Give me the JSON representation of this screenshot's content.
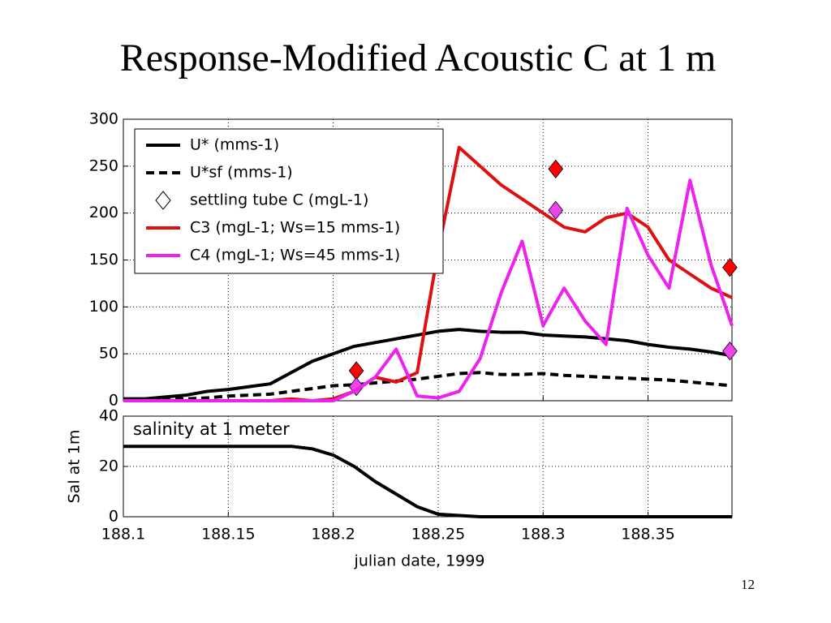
{
  "title": "Response-Modified Acoustic C at 1 m",
  "page_number": "12",
  "chart_data": [
    {
      "type": "line",
      "x": [
        188.1,
        188.11,
        188.12,
        188.13,
        188.14,
        188.15,
        188.16,
        188.17,
        188.18,
        188.19,
        188.2,
        188.21,
        188.22,
        188.23,
        188.24,
        188.25,
        188.26,
        188.27,
        188.28,
        188.29,
        188.3,
        188.31,
        188.32,
        188.33,
        188.34,
        188.35,
        188.36,
        188.37,
        188.38,
        188.39
      ],
      "series": [
        {
          "name": "U* (mms-1)",
          "color": "#000000",
          "linestyle": "solid",
          "values": [
            2,
            2,
            4,
            6,
            10,
            12,
            15,
            18,
            30,
            42,
            50,
            58,
            62,
            66,
            70,
            74,
            76,
            74,
            73,
            73,
            70,
            69,
            68,
            66,
            64,
            60,
            57,
            55,
            52,
            48
          ]
        },
        {
          "name": "U*sf (mms-1)",
          "color": "#000000",
          "linestyle": "dashed",
          "values": [
            1,
            1,
            2,
            2,
            3,
            5,
            6,
            7,
            10,
            13,
            16,
            17,
            19,
            21,
            23,
            26,
            29,
            30,
            28,
            28,
            29,
            27,
            26,
            25,
            24,
            23,
            22,
            20,
            18,
            16
          ]
        },
        {
          "name": "settling tube C (mgL-1)",
          "type": "scatter",
          "marker": "diamond",
          "x": [
            188.211,
            188.306,
            188.389,
            188.211,
            188.306,
            188.389
          ],
          "values": [
            32,
            247,
            142,
            15,
            203,
            53
          ],
          "colors": [
            "#ff0000",
            "#ff0000",
            "#ff0000",
            "#ee44ee",
            "#ee44ee",
            "#ee44ee"
          ]
        },
        {
          "name": "C3 (mgL-1; Ws=15 mms-1)",
          "color": "#dd1111",
          "linestyle": "solid",
          "values": [
            0,
            0,
            0,
            0,
            0,
            0,
            0,
            0,
            2,
            0,
            2,
            10,
            25,
            20,
            30,
            160,
            270,
            250,
            230,
            215,
            200,
            185,
            180,
            195,
            200,
            185,
            150,
            135,
            120,
            110
          ]
        },
        {
          "name": "C4 (mgL-1; Ws=45 mms-1)",
          "color": "#ee22ee",
          "linestyle": "solid",
          "values": [
            0,
            0,
            0,
            0,
            0,
            0,
            0,
            0,
            0,
            0,
            0,
            10,
            25,
            55,
            5,
            3,
            10,
            45,
            115,
            170,
            80,
            120,
            85,
            60,
            205,
            155,
            120,
            235,
            145,
            80
          ]
        }
      ],
      "xlim": [
        188.1,
        188.39
      ],
      "xticks": [
        188.1,
        188.15,
        188.2,
        188.25,
        188.3,
        188.35
      ],
      "ylim": [
        0,
        300
      ],
      "yticks": [
        0,
        50,
        100,
        150,
        200,
        250,
        300
      ],
      "grid": true,
      "legend": "upper left"
    },
    {
      "type": "line",
      "x": [
        188.1,
        188.11,
        188.12,
        188.13,
        188.14,
        188.15,
        188.16,
        188.17,
        188.18,
        188.19,
        188.2,
        188.21,
        188.22,
        188.23,
        188.24,
        188.25,
        188.26,
        188.27,
        188.28,
        188.29,
        188.3,
        188.31,
        188.32,
        188.33,
        188.34,
        188.35,
        188.36,
        188.37,
        188.38,
        188.39
      ],
      "series": [
        {
          "color": "#000000",
          "linestyle": "solid",
          "values": [
            28,
            28,
            28,
            28,
            28,
            28,
            28,
            28,
            28,
            27,
            24.5,
            20,
            14,
            9,
            4,
            1,
            0.5,
            0,
            0,
            0,
            0,
            0,
            0,
            0,
            0,
            0,
            0,
            0,
            0,
            0
          ]
        }
      ],
      "annotation": "salinity at 1 meter",
      "ylabel": "Sal at 1m",
      "xlabel": "julian date, 1999",
      "xlim": [
        188.1,
        188.39
      ],
      "xticks": [
        188.1,
        188.15,
        188.2,
        188.25,
        188.3,
        188.35
      ],
      "ylim": [
        0,
        40
      ],
      "yticks": [
        0,
        20,
        40
      ],
      "grid": true
    }
  ]
}
